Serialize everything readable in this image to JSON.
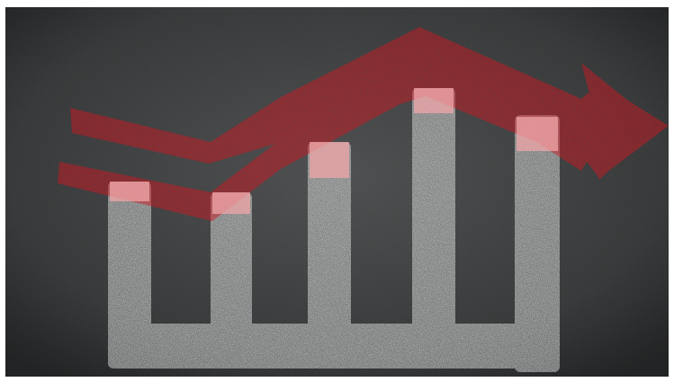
{
  "image": {
    "kind": "photograph",
    "colors": {
      "asphalt": "#3f4142",
      "asphalt_dark": "#2b2d2e",
      "paint_white": "#dcdedd",
      "paint_red": "#d41820",
      "overlap_pink": "#f0a6a8"
    }
  }
}
